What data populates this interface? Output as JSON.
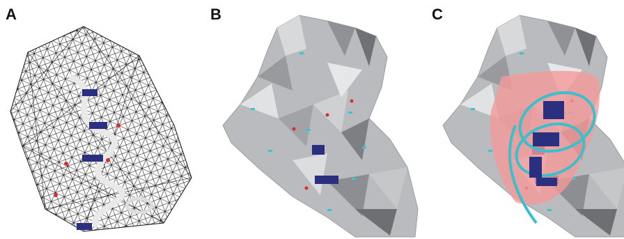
{
  "panels": [
    {
      "label": "A"
    },
    {
      "label": "B"
    },
    {
      "label": "C"
    }
  ]
}
